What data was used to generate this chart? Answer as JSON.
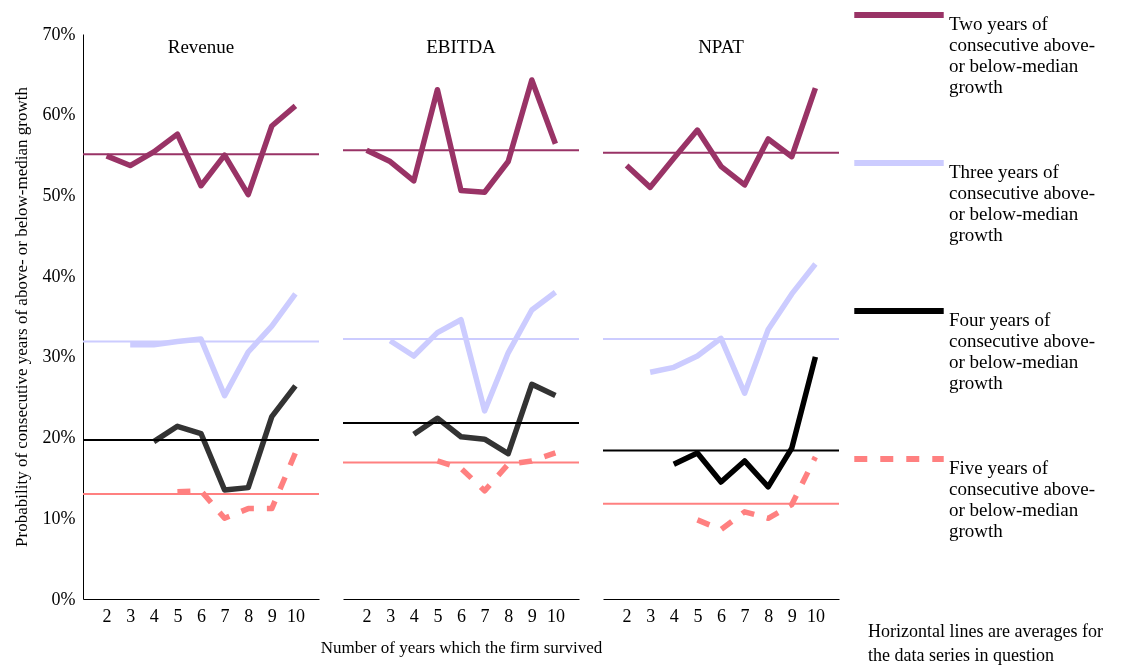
{
  "chart_data": [
    {
      "type": "line",
      "title": "Revenue",
      "ylabel": "Probability of consecutive years of above- or below-median growth",
      "categories": [
        "2",
        "3",
        "4",
        "5",
        "6",
        "7",
        "8",
        "9",
        "10"
      ],
      "ylim": [
        0,
        70
      ],
      "yticks": [
        {
          "value": 0,
          "label": "0%"
        },
        {
          "value": 10,
          "label": "10%"
        },
        {
          "value": 20,
          "label": "20%"
        },
        {
          "value": 30,
          "label": "30%"
        },
        {
          "value": 40,
          "label": "40%"
        },
        {
          "value": 50,
          "label": "50%"
        },
        {
          "value": 60,
          "label": "60%"
        },
        {
          "value": 70,
          "label": "70%"
        }
      ],
      "grid": false,
      "series": [
        {
          "color": "#993366",
          "line_style": "solid",
          "values": [
            54.9,
            53.7,
            55.4,
            57.6,
            51.2,
            55.0,
            50.1,
            58.6,
            61.1
          ]
        },
        {
          "color": "#ccccff",
          "line_style": "solid",
          "values": [
            null,
            31.5,
            31.5,
            31.9,
            32.2,
            25.2,
            30.6,
            33.8,
            37.8
          ]
        },
        {
          "color": "#333333",
          "line_style": "solid",
          "values": [
            null,
            null,
            19.5,
            21.4,
            20.5,
            13.5,
            13.8,
            22.6,
            26.4
          ]
        },
        {
          "color": "#ff8080",
          "line_style": "dashed",
          "values": [
            null,
            null,
            null,
            13.3,
            13.4,
            10.0,
            11.2,
            11.2,
            18.1
          ]
        }
      ],
      "ref_lines": [
        {
          "axis": "y",
          "value": 55.1,
          "color": "#993366"
        },
        {
          "axis": "y",
          "value": 31.9,
          "color": "#ccccff"
        },
        {
          "axis": "y",
          "value": 19.7,
          "color": "#000000"
        },
        {
          "axis": "y",
          "value": 13.0,
          "color": "#ff8080"
        }
      ]
    },
    {
      "type": "line",
      "title": "EBITDA",
      "xlabel": "Number of years which the firm survived",
      "categories": [
        "2",
        "3",
        "4",
        "5",
        "6",
        "7",
        "8",
        "9",
        "10"
      ],
      "ylim": [
        0,
        70
      ],
      "tick_labels": "x",
      "grid": false,
      "series": [
        {
          "color": "#993366",
          "line_style": "solid",
          "values": [
            55.6,
            54.2,
            51.8,
            63.1,
            50.6,
            50.4,
            54.2,
            64.3,
            56.4
          ]
        },
        {
          "color": "#ccccff",
          "line_style": "solid",
          "values": [
            null,
            32.0,
            30.1,
            33.0,
            34.6,
            23.3,
            30.5,
            35.8,
            38.0
          ]
        },
        {
          "color": "#333333",
          "line_style": "solid",
          "values": [
            null,
            null,
            20.4,
            22.4,
            20.1,
            19.8,
            18.0,
            26.6,
            25.2
          ]
        },
        {
          "color": "#ff8080",
          "line_style": "dashed",
          "values": [
            null,
            null,
            null,
            17.1,
            16.2,
            13.4,
            16.7,
            17.1,
            18.1
          ]
        }
      ],
      "ref_lines": [
        {
          "axis": "y",
          "value": 55.6,
          "color": "#993366"
        },
        {
          "axis": "y",
          "value": 32.2,
          "color": "#ccccff"
        },
        {
          "axis": "y",
          "value": 21.8,
          "color": "#000000"
        },
        {
          "axis": "y",
          "value": 16.9,
          "color": "#ff8080"
        }
      ]
    },
    {
      "type": "line",
      "title": "NPAT",
      "categories": [
        "2",
        "3",
        "4",
        "5",
        "6",
        "7",
        "8",
        "9",
        "10"
      ],
      "ylim": [
        0,
        70
      ],
      "tick_labels": "x",
      "grid": false,
      "legend": "right",
      "annotations": [
        "Horizontal lines are averages for the data series in question"
      ],
      "series": [
        {
          "name": "Two years of consecutive above- or below-median growth",
          "color": "#993366",
          "line_style": "solid",
          "values": [
            53.7,
            51.0,
            54.6,
            58.1,
            53.6,
            51.3,
            57.0,
            54.8,
            63.3
          ]
        },
        {
          "name": "Three years of consecutive above- or below-median growth",
          "color": "#ccccff",
          "line_style": "solid",
          "values": [
            null,
            28.1,
            28.7,
            30.1,
            32.3,
            25.5,
            33.4,
            37.8,
            41.5
          ]
        },
        {
          "name": "Four years of consecutive above- or below-median growth",
          "color": "#000000",
          "line_style": "solid",
          "values": [
            null,
            null,
            16.7,
            18.1,
            14.5,
            17.1,
            13.9,
            18.7,
            30.0
          ]
        },
        {
          "name": "Five years of consecutive above- or below-median growth",
          "color": "#ff8080",
          "line_style": "dashed",
          "values": [
            null,
            null,
            null,
            9.8,
            8.6,
            10.8,
            10.0,
            11.7,
            17.6
          ]
        }
      ],
      "ref_lines": [
        {
          "axis": "y",
          "value": 55.3,
          "color": "#993366"
        },
        {
          "axis": "y",
          "value": 32.2,
          "color": "#ccccff"
        },
        {
          "axis": "y",
          "value": 18.4,
          "color": "#000000"
        },
        {
          "axis": "y",
          "value": 11.8,
          "color": "#ff8080"
        }
      ]
    }
  ]
}
